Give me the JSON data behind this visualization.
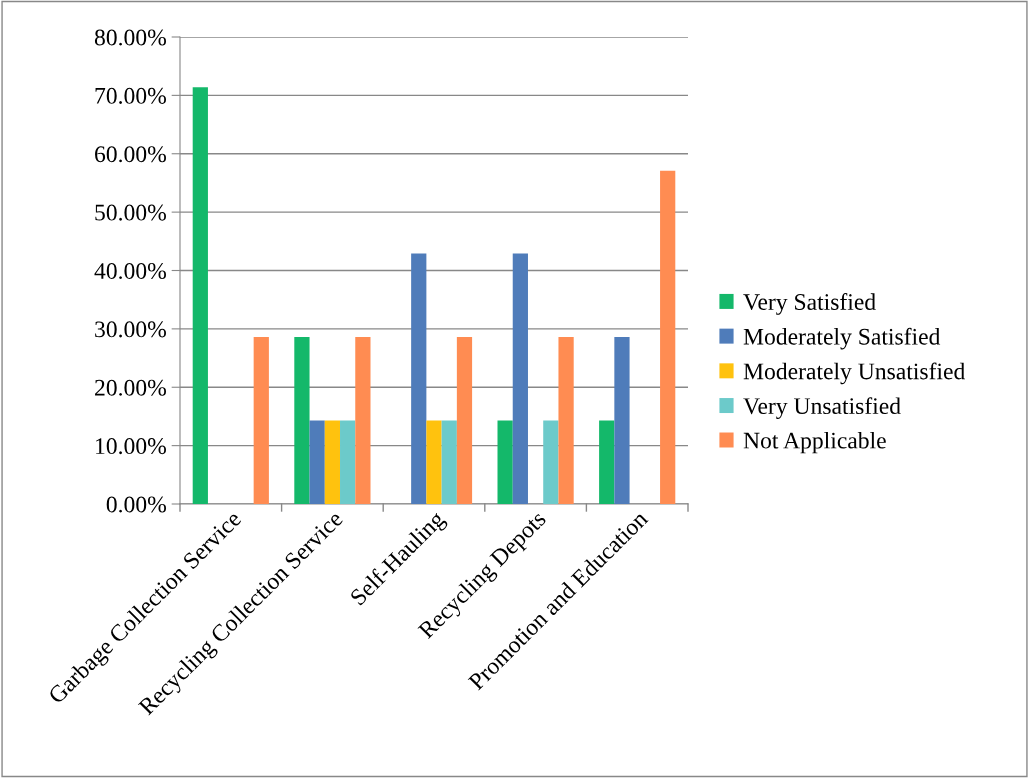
{
  "chart_data": {
    "type": "bar",
    "categories": [
      "Garbage Collection Service",
      "Recycling Collection Service",
      "Self-Hauling",
      "Recycling Depots",
      "Promotion and Education"
    ],
    "series": [
      {
        "name": "Very Satisfied",
        "color": "#14b86a",
        "values": [
          71.4,
          28.6,
          0,
          14.3,
          14.3
        ]
      },
      {
        "name": "Moderately Satisfied",
        "color": "#4f7cba",
        "values": [
          0,
          14.3,
          42.9,
          42.9,
          28.6
        ]
      },
      {
        "name": "Moderately Unsatisfied",
        "color": "#ffc20e",
        "values": [
          0,
          14.3,
          14.3,
          0,
          0
        ]
      },
      {
        "name": "Very Unsatisfied",
        "color": "#6ccaca",
        "values": [
          0,
          14.3,
          14.3,
          14.3,
          0
        ]
      },
      {
        "name": "Not Applicable",
        "color": "#ff8c52",
        "values": [
          28.6,
          28.6,
          28.6,
          28.6,
          57.1
        ]
      }
    ],
    "ylim": [
      0,
      80
    ],
    "yticks": [
      {
        "value": 0,
        "label": "0.00%"
      },
      {
        "value": 10,
        "label": "10.00%"
      },
      {
        "value": 20,
        "label": "20.00%"
      },
      {
        "value": 30,
        "label": "30.00%"
      },
      {
        "value": 40,
        "label": "40.00%"
      },
      {
        "value": 50,
        "label": "50.00%"
      },
      {
        "value": 60,
        "label": "60.00%"
      },
      {
        "value": 70,
        "label": "70.00%"
      },
      {
        "value": 80,
        "label": "80.00%"
      }
    ],
    "grid": "y",
    "legend": "right"
  }
}
